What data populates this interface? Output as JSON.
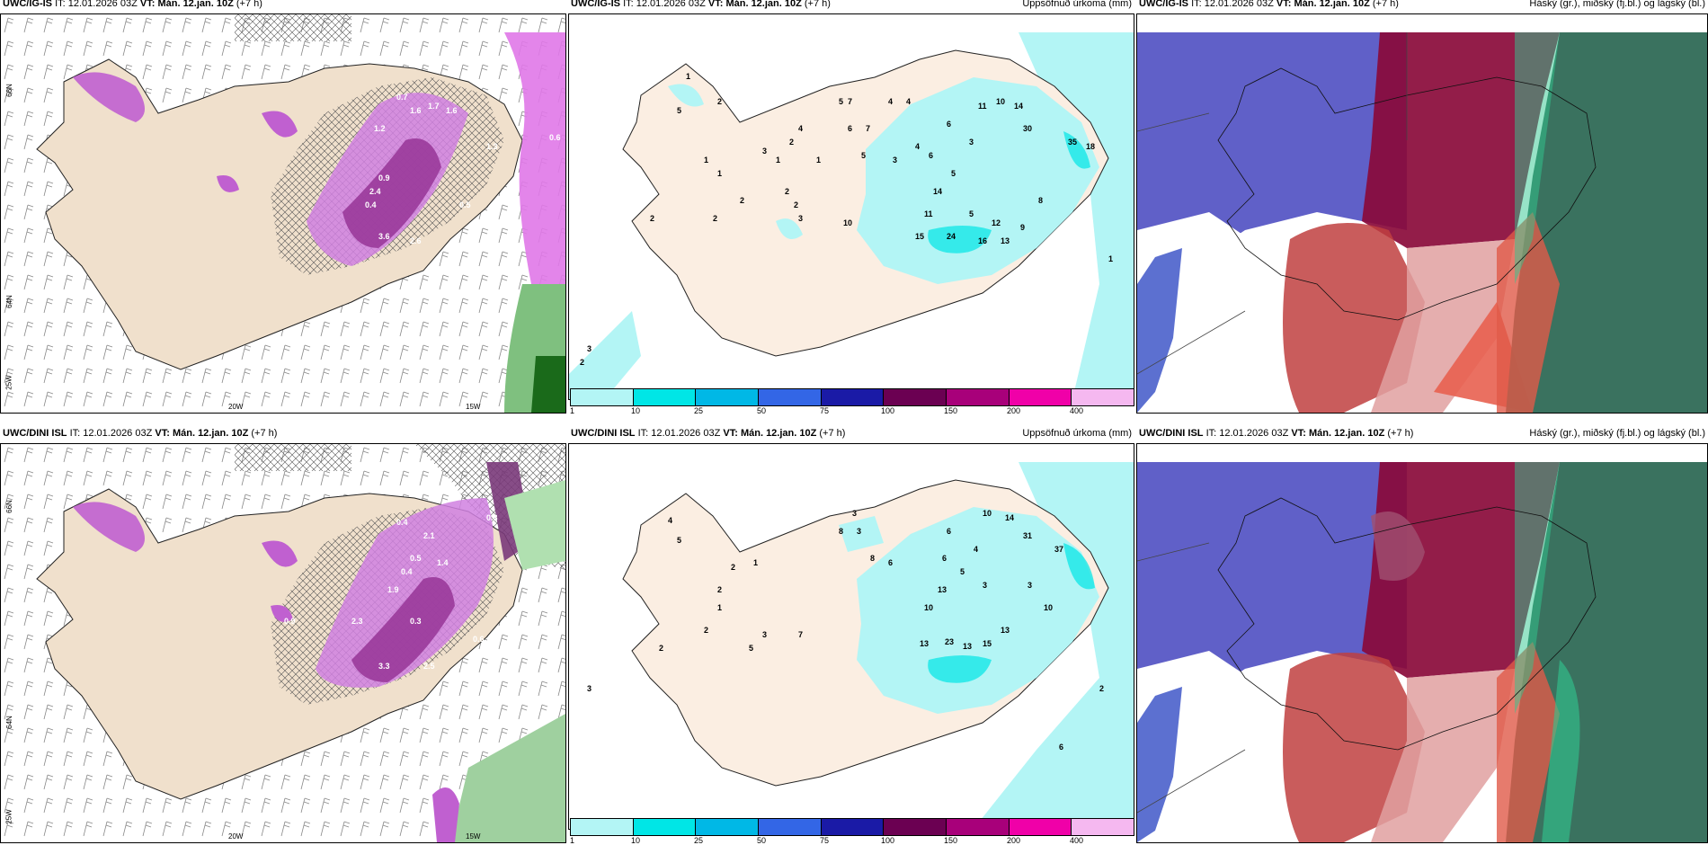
{
  "rows": [
    {
      "model": "UWC/IG-IS",
      "it_label": "IT:",
      "it_value": "12.01.2026 03Z",
      "vt_label": "VT:",
      "vt_value": "Mán. 12.jan. 10Z",
      "lead": "(+7 h)"
    },
    {
      "model": "UWC/DINI ISL",
      "it_label": "IT:",
      "it_value": "12.01.2026 03Z",
      "vt_label": "VT:",
      "vt_value": "Mán. 12.jan. 10Z",
      "lead": "(+7 h)"
    }
  ],
  "panel_subtitles": {
    "precip": "Uppsöfnuð úrkoma (mm)",
    "cloud": "Háský (gr.), miðský (fj.bl.) og lágský (bl.)"
  },
  "axis_labels": {
    "lat66": "66N",
    "lat64": "64N",
    "lon25": "25W",
    "lon20": "20W",
    "lon15": "15W"
  },
  "colorbar": {
    "ticks": [
      "1",
      "10",
      "25",
      "50",
      "75",
      "100",
      "150",
      "200",
      "400"
    ],
    "colors": [
      "#b3f5f5",
      "#00e6e6",
      "#00b8e6",
      "#3366e6",
      "#1a1aa6",
      "#6b0052",
      "#a8007a",
      "#f000a8",
      "#f5b8f0"
    ]
  },
  "precip_values_top": [
    "5",
    "1",
    "2",
    "1",
    "2",
    "1",
    "2",
    "2",
    "1",
    "3",
    "2",
    "1",
    "2",
    "2",
    "3",
    "10",
    "4",
    "5",
    "7",
    "6",
    "5",
    "7",
    "4",
    "4",
    "11",
    "10",
    "14",
    "6",
    "3",
    "30",
    "35",
    "18",
    "6",
    "5",
    "4",
    "3",
    "14",
    "11",
    "15",
    "24",
    "16",
    "13",
    "12",
    "9",
    "8",
    "5",
    "1",
    "2",
    "3"
  ],
  "precip_values_bottom": [
    "4",
    "5",
    "2",
    "2",
    "1",
    "2",
    "1",
    "2",
    "5",
    "3",
    "7",
    "8",
    "3",
    "3",
    "8",
    "6",
    "10",
    "14",
    "31",
    "37",
    "6",
    "4",
    "5",
    "6",
    "13",
    "10",
    "13",
    "23",
    "13",
    "15",
    "13",
    "3",
    "3",
    "10",
    "2",
    "6",
    "3"
  ],
  "wind_values_top": [
    "0.7",
    "1.6",
    "1.7",
    "1.6",
    "1.2",
    "0.9",
    "2.4",
    "0.4",
    "2.6",
    "3.6",
    "1.3",
    "0.5",
    "0.6"
  ],
  "wind_values_bottom": [
    "0.8",
    "0.4",
    "2.1",
    "0.5",
    "0.4",
    "1.9",
    "0.3",
    "2.3",
    "3.3",
    "2.5",
    "1.4",
    "0.6",
    "0.9"
  ]
}
